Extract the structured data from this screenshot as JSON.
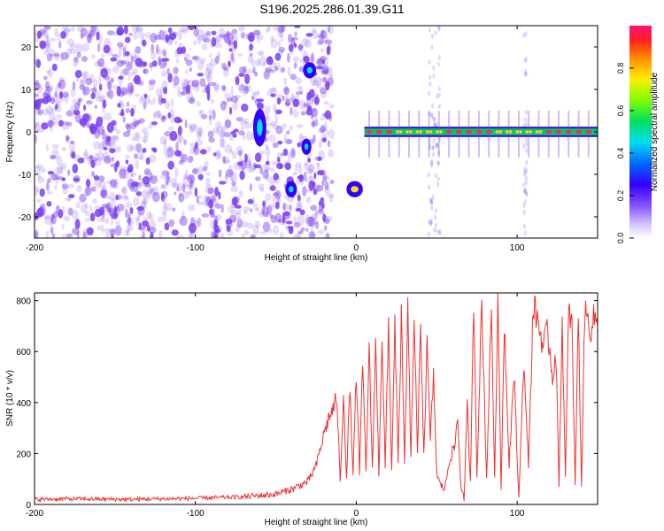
{
  "page": {
    "title": "S196.2025.286.01.39.G11"
  },
  "colors": {
    "background": "#ffffff",
    "spectrogram_noise": "#7a3ff0",
    "line_color": "#ee3333",
    "colormap": [
      "#ffffff",
      "#9966ff",
      "#3300ff",
      "#0088ff",
      "#00e5e5",
      "#00e000",
      "#b0ff00",
      "#ffee00",
      "#ff7700",
      "#ff2222",
      "#ff1060"
    ]
  },
  "chart_data": [
    {
      "type": "heatmap",
      "title": "S196.2025.286.01.39.G11",
      "xlabel": "Height of straight line (km)",
      "ylabel": "Frequency (Hz)",
      "xlim": [
        -200,
        150
      ],
      "ylim": [
        -25,
        25
      ],
      "xticks": [
        -200,
        -100,
        0,
        100
      ],
      "xtick_labels": [
        "-200",
        "-100",
        "0",
        "100"
      ],
      "yticks": [
        -20,
        -10,
        0,
        10,
        20
      ],
      "ytick_labels": [
        "-20",
        "-10",
        "0",
        "10",
        "20"
      ],
      "colorbar": {
        "label": "Normalized spectral amplitude",
        "range": [
          0,
          1
        ],
        "ticks": [
          0.0,
          0.2,
          0.4,
          0.6,
          0.8
        ],
        "tick_labels": [
          "0.0",
          "0.2",
          "0.4",
          "0.6",
          "0.8"
        ]
      },
      "features": [
        {
          "x": [
            -200,
            -20
          ],
          "freq": [
            -25,
            25
          ],
          "amplitude": 0.1,
          "note": "broadband noise"
        },
        {
          "x": [
            -63,
            -57
          ],
          "freq": [
            -3,
            5
          ],
          "amplitude": 0.3
        },
        {
          "x": [
            -43,
            -38
          ],
          "freq": [
            -15,
            -12
          ],
          "amplitude": 0.35
        },
        {
          "x": [
            -33,
            -29
          ],
          "freq": [
            -5,
            -2
          ],
          "amplitude": 0.3
        },
        {
          "x": [
            -32,
            -26
          ],
          "freq": [
            13,
            16
          ],
          "amplitude": 0.35
        },
        {
          "x": [
            -5,
            3
          ],
          "freq": [
            -15,
            -12
          ],
          "amplitude": 0.5
        },
        {
          "x": [
            5,
            150
          ],
          "freq": [
            -1,
            1
          ],
          "amplitude": 0.9,
          "note": "narrowband carrier at 0 Hz"
        }
      ]
    },
    {
      "type": "line",
      "xlabel": "Height of straight line (km)",
      "ylabel": "SNR (10 * v/v)",
      "xlim": [
        -200,
        150
      ],
      "ylim": [
        0,
        830
      ],
      "xticks": [
        -200,
        -100,
        0,
        100
      ],
      "xtick_labels": [
        "-200",
        "-100",
        "0",
        "100"
      ],
      "yticks": [
        0,
        200,
        400,
        600,
        800
      ],
      "ytick_labels": [
        "0",
        "200",
        "400",
        "600",
        "800"
      ],
      "series": [
        {
          "name": "SNR",
          "x": [
            -200,
            -180,
            -160,
            -140,
            -120,
            -100,
            -80,
            -70,
            -60,
            -50,
            -40,
            -30,
            -25,
            -20,
            -17,
            -14,
            -12,
            -10,
            -8,
            -6,
            -4,
            -2,
            0,
            2,
            4,
            6,
            8,
            10,
            12,
            14,
            16,
            18,
            20,
            22,
            24,
            26,
            28,
            30,
            32,
            34,
            36,
            38,
            40,
            42,
            44,
            46,
            48,
            50,
            52,
            55,
            58,
            61,
            63,
            65,
            67,
            69,
            71,
            73,
            75,
            78,
            81,
            84,
            86,
            88,
            90,
            92,
            95,
            98,
            101,
            104,
            107,
            110,
            113,
            116,
            119,
            122,
            124,
            126,
            128,
            130,
            132,
            134,
            136,
            138,
            140,
            142,
            144,
            146,
            148,
            150
          ],
          "values": [
            20,
            22,
            21,
            20,
            22,
            24,
            28,
            30,
            35,
            40,
            60,
            90,
            150,
            280,
            340,
            380,
            420,
            80,
            440,
            100,
            460,
            110,
            520,
            120,
            560,
            130,
            600,
            140,
            640,
            120,
            670,
            140,
            700,
            130,
            720,
            150,
            740,
            160,
            760,
            170,
            750,
            180,
            720,
            200,
            620,
            250,
            500,
            120,
            80,
            60,
            180,
            220,
            340,
            80,
            20,
            380,
            80,
            820,
            120,
            790,
            100,
            780,
            90,
            820,
            60,
            720,
            160,
            520,
            20,
            560,
            160,
            780,
            720,
            620,
            680,
            500,
            600,
            80,
            720,
            100,
            760,
            720,
            80,
            740,
            70,
            760,
            720,
            690,
            740,
            700
          ]
        }
      ]
    }
  ]
}
